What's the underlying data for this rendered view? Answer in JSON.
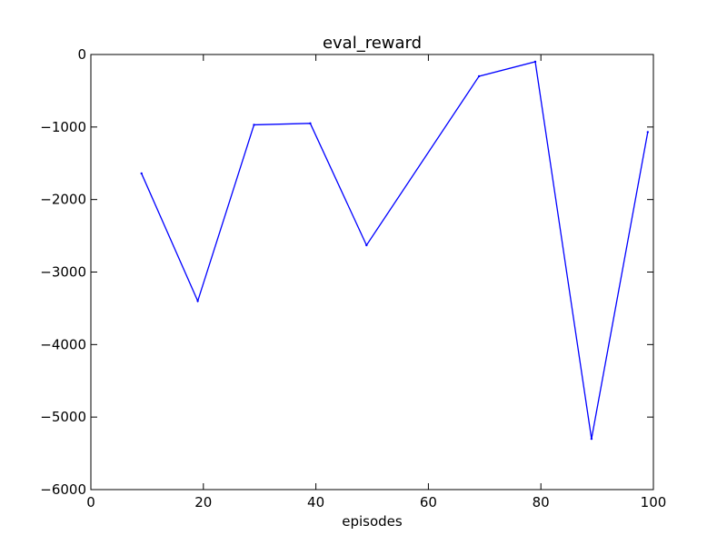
{
  "chart_data": {
    "type": "line",
    "title": "eval_reward",
    "xlabel": "episodes",
    "ylabel": "",
    "xlim": [
      0,
      100
    ],
    "ylim": [
      -6000,
      0
    ],
    "xticks": [
      0,
      20,
      40,
      60,
      80,
      100
    ],
    "yticks": [
      0,
      -1000,
      -2000,
      -3000,
      -4000,
      -5000,
      -6000
    ],
    "xtick_labels": [
      "0",
      "20",
      "40",
      "60",
      "80",
      "100"
    ],
    "ytick_labels": [
      "0",
      "−1000",
      "−2000",
      "−3000",
      "−4000",
      "−5000",
      "−6000"
    ],
    "grid": false,
    "series": [
      {
        "color": "#0000ff",
        "x": [
          9,
          19,
          29,
          39,
          49,
          69,
          79,
          89,
          99
        ],
        "y": [
          -1640,
          -3400,
          -970,
          -950,
          -2630,
          -300,
          -100,
          -5300,
          -1070
        ]
      }
    ]
  }
}
